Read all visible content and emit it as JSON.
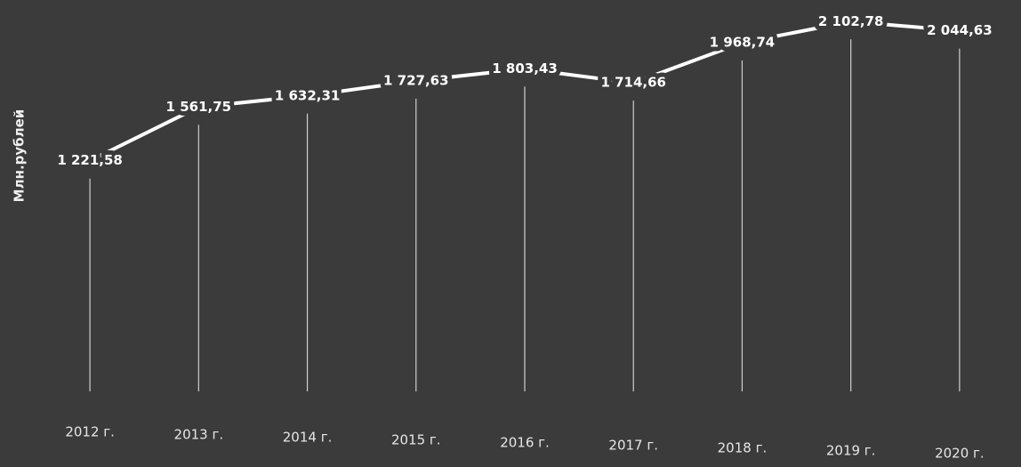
{
  "chart_data": {
    "type": "line",
    "ylabel": "Млн.рублей",
    "categories": [
      "2012 г.",
      "2013 г.",
      "2014 г.",
      "2015 г.",
      "2016 г.",
      "2017 г.",
      "2018 г.",
      "2019 г.",
      "2020 г."
    ],
    "values": [
      1221.58,
      1561.75,
      1632.31,
      1727.63,
      1803.43,
      1714.66,
      1968.74,
      2102.78,
      2044.63
    ],
    "value_labels": [
      "1 221,58",
      "1 561,75",
      "1 632,31",
      "1 727,63",
      "1 803,43",
      "1 714,66",
      "1 968,74",
      "2 102,78",
      "2 044,63"
    ],
    "color": "#ffffff",
    "ylim": [
      -250,
      2200
    ]
  }
}
